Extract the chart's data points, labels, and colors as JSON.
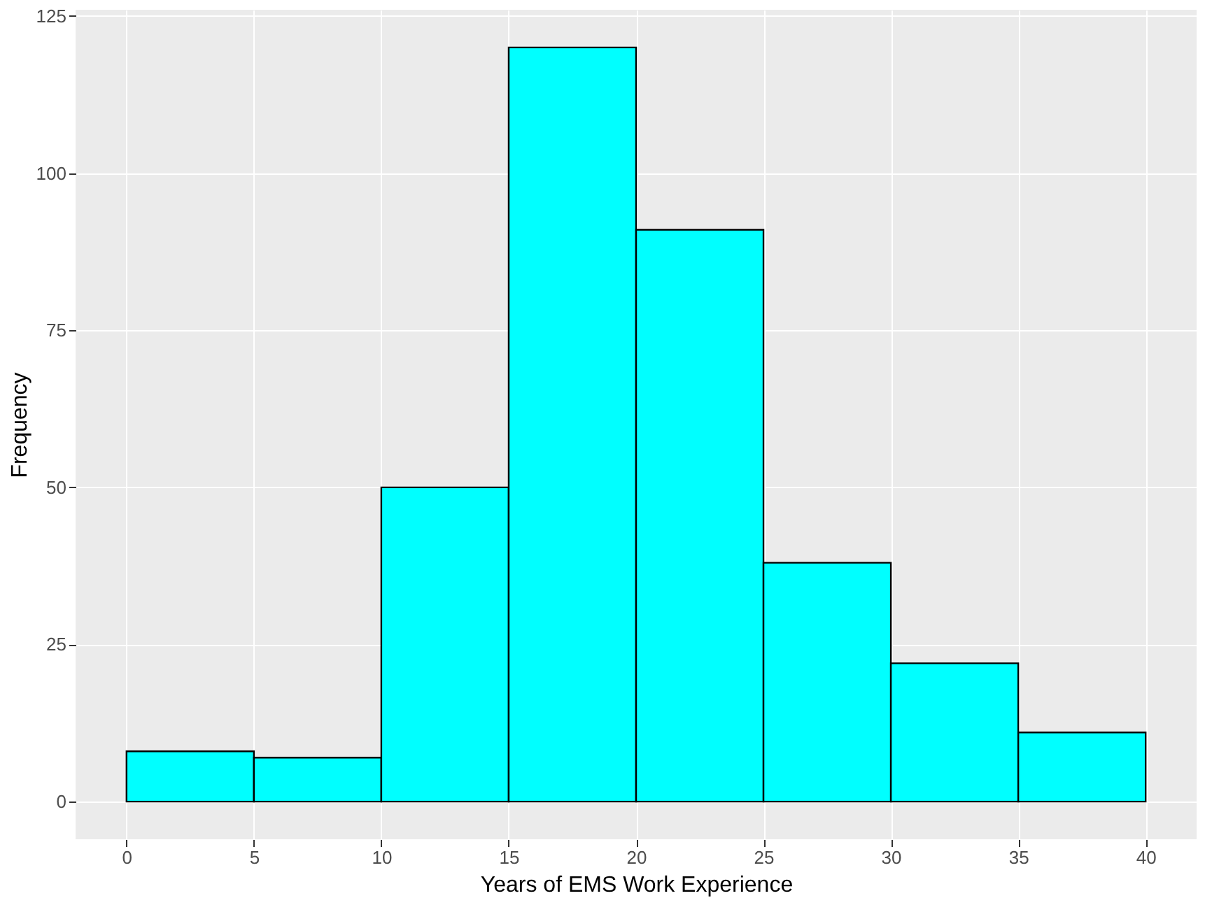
{
  "chart_data": {
    "type": "histogram",
    "xlabel": "Years of EMS Work Experience",
    "ylabel": "Frequency",
    "bins": [
      0,
      5,
      10,
      15,
      20,
      25,
      30,
      35,
      40
    ],
    "values": [
      8,
      7,
      50,
      120,
      91,
      38,
      22,
      11
    ],
    "color": "#00ffff",
    "xlim": [
      -2,
      42
    ],
    "xticks": [
      0,
      5,
      10,
      15,
      20,
      25,
      30,
      35,
      40
    ],
    "ylim": [
      -6,
      126
    ],
    "yticks": [
      0,
      25,
      50,
      75,
      100,
      125
    ],
    "grid": true
  }
}
